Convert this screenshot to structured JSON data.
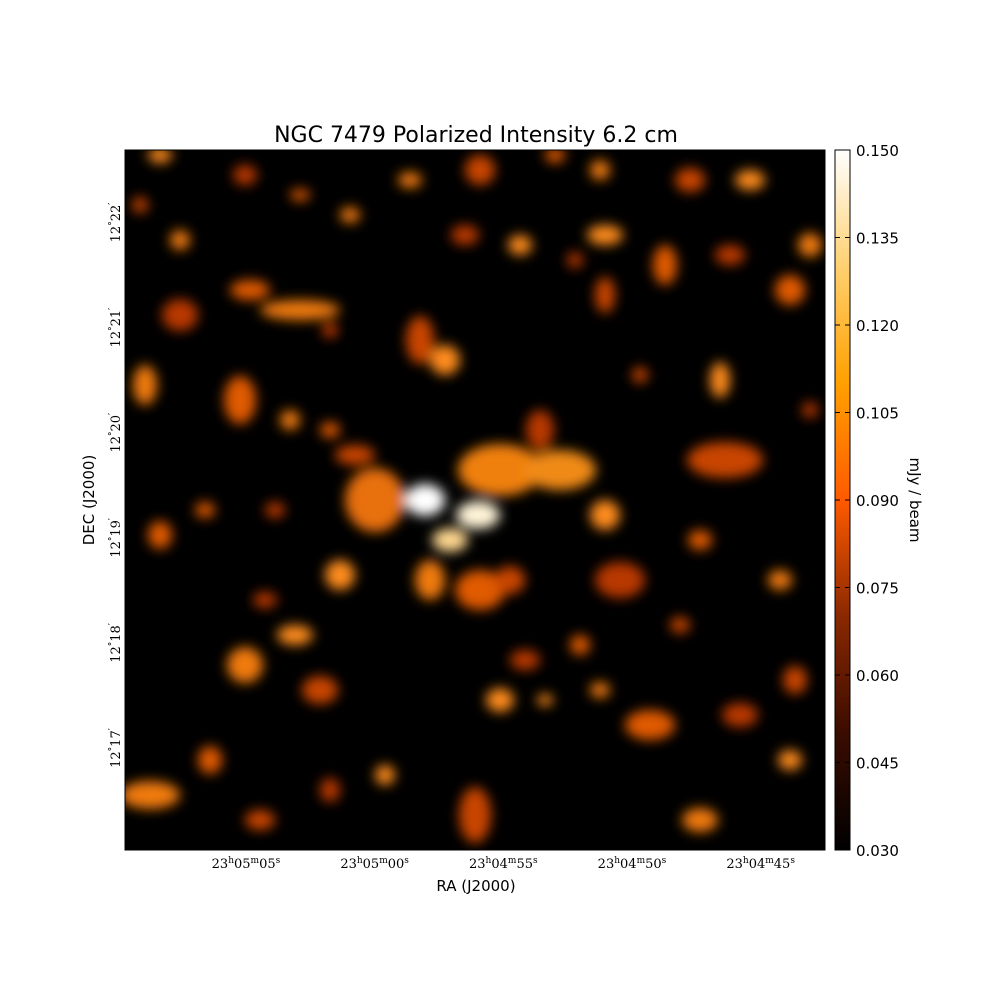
{
  "chart_data": {
    "type": "image",
    "title": "NGC 7479 Polarized Intensity 6.2 cm",
    "xlabel": "RA (J2000)",
    "ylabel": "DEC (J2000)",
    "xlim": [
      83109.7,
      83082.5
    ],
    "ylim": [
      736.03,
      742.69
    ],
    "xticks": [
      {
        "value": 83105,
        "label": [
          "23",
          "h",
          "05",
          "m",
          "05",
          "s"
        ]
      },
      {
        "value": 83100,
        "label": [
          "23",
          "h",
          "05",
          "m",
          "00",
          "s"
        ]
      },
      {
        "value": 83095,
        "label": [
          "23",
          "h",
          "04",
          "m",
          "55",
          "s"
        ]
      },
      {
        "value": 83090,
        "label": [
          "23",
          "h",
          "04",
          "m",
          "50",
          "s"
        ]
      },
      {
        "value": 83085,
        "label": [
          "23",
          "h",
          "04",
          "m",
          "45",
          "s"
        ]
      }
    ],
    "yticks": [
      {
        "value": 737,
        "label": [
          "12",
          "°",
          "17",
          "′"
        ]
      },
      {
        "value": 738,
        "label": [
          "12",
          "°",
          "18",
          "′"
        ]
      },
      {
        "value": 739,
        "label": [
          "12",
          "°",
          "19",
          "′"
        ]
      },
      {
        "value": 740,
        "label": [
          "12",
          "°",
          "20",
          "′"
        ]
      },
      {
        "value": 741,
        "label": [
          "12",
          "°",
          "21",
          "′"
        ]
      },
      {
        "value": 742,
        "label": [
          "12",
          "°",
          "22",
          "′"
        ]
      }
    ],
    "colorbar": {
      "label": "mJy / beam",
      "lim": [
        0.03,
        0.15
      ],
      "colors": [
        "#000000",
        "#3a0c00",
        "#8a2800",
        "#ff5a00",
        "#ffa000",
        "#ffd070",
        "#ffffff"
      ],
      "ticks": [
        {
          "value": 0.03,
          "label": "0.030"
        },
        0.045,
        {
          "value": 0.06,
          "label": "0.060"
        },
        0.075,
        {
          "value": 0.09,
          "label": "0.090"
        },
        0.105,
        {
          "value": 0.12,
          "label": "0.120"
        },
        0.135,
        {
          "value": 0.15,
          "label": "0.150"
        }
      ]
    }
  }
}
